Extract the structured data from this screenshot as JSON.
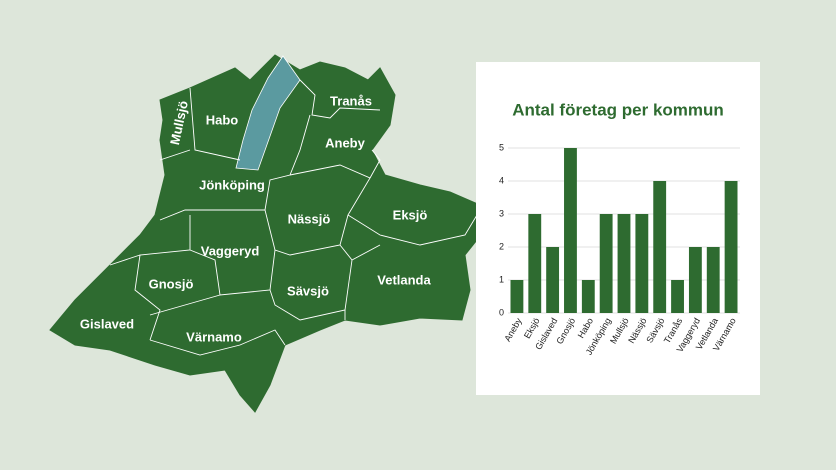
{
  "map": {
    "labels": [
      "Mullsjö",
      "Habo",
      "Tranås",
      "Aneby",
      "Jönköping",
      "Nässjö",
      "Eksjö",
      "Vaggeryd",
      "Gnosjö",
      "Sävsjö",
      "Vetlanda",
      "Gislaved",
      "Värnamo"
    ]
  },
  "chart_data": {
    "type": "bar",
    "title": "Antal företag per kommun",
    "categories": [
      "Aneby",
      "Eksjö",
      "Gislaved",
      "Gnosjö",
      "Habo",
      "Jönköping",
      "Mullsjö",
      "Nässjö",
      "Sävsjö",
      "Tranås",
      "Vaggeryd",
      "Vetlanda",
      "Värnamo"
    ],
    "values": [
      1,
      3,
      2,
      5,
      1,
      3,
      3,
      3,
      4,
      1,
      2,
      2,
      4
    ],
    "color": "#2e6b30",
    "ylim": [
      0,
      5
    ],
    "yticks": [
      0,
      1,
      2,
      3,
      4,
      5
    ],
    "grid": true
  }
}
